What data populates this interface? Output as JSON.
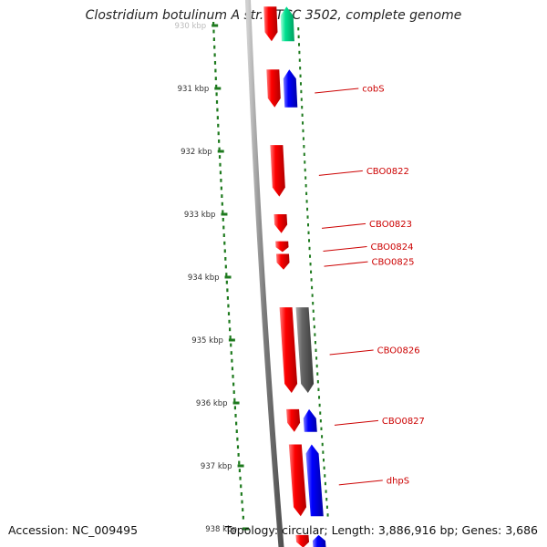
{
  "title": "Clostridium botulinum A str. ATCC 3502, complete genome",
  "accession_text": "Accession: NC_009495",
  "summary_text": "Topology: circular; Length: 3,886,916 bp; Genes: 3,686",
  "colors": {
    "forward": "#ff0000",
    "reverse": "#0000ff",
    "rna": "#00e090",
    "pseudo": "#666666",
    "backbone": "#8a8a8a",
    "tick": "#1e7a1e",
    "label": "#cc0000"
  },
  "kbp_ticks": [
    "930 kbp",
    "931 kbp",
    "932 kbp",
    "933 kbp",
    "934 kbp",
    "935 kbp",
    "936 kbp",
    "937 kbp",
    "938 kbp"
  ],
  "genes": [
    {
      "label": "",
      "strand": "forward",
      "start_kbp": 929.7,
      "end_kbp": 930.25
    },
    {
      "label": "",
      "strand": "rna",
      "start_kbp": 929.7,
      "end_kbp": 930.25
    },
    {
      "label": "cobS",
      "strand": "forward",
      "start_kbp": 930.7,
      "end_kbp": 931.3
    },
    {
      "label": "",
      "strand": "reverse",
      "start_kbp": 930.7,
      "end_kbp": 931.3
    },
    {
      "label": "CBO0822",
      "strand": "forward",
      "start_kbp": 931.9,
      "end_kbp": 932.72
    },
    {
      "label": "CBO0823",
      "strand": "forward",
      "start_kbp": 933.0,
      "end_kbp": 933.3
    },
    {
      "label": "CBO0824",
      "strand": "forward",
      "start_kbp": 933.43,
      "end_kbp": 933.6
    },
    {
      "label": "CBO0825",
      "strand": "forward",
      "start_kbp": 933.63,
      "end_kbp": 933.88
    },
    {
      "label": "CBO0826",
      "strand": "forward",
      "start_kbp": 934.48,
      "end_kbp": 935.84
    },
    {
      "label": "",
      "strand": "pseudo",
      "start_kbp": 934.48,
      "end_kbp": 935.84
    },
    {
      "label": "CBO0827",
      "strand": "forward",
      "start_kbp": 936.1,
      "end_kbp": 936.46
    },
    {
      "label": "",
      "strand": "reverse",
      "start_kbp": 936.1,
      "end_kbp": 936.46
    },
    {
      "label": "dhpS",
      "strand": "forward",
      "start_kbp": 936.66,
      "end_kbp": 937.8
    },
    {
      "label": "",
      "strand": "reverse",
      "start_kbp": 936.66,
      "end_kbp": 937.8
    },
    {
      "label": "",
      "strand": "forward",
      "start_kbp": 938.1,
      "end_kbp": 938.3
    },
    {
      "label": "",
      "strand": "reverse",
      "start_kbp": 938.1,
      "end_kbp": 938.3
    }
  ]
}
